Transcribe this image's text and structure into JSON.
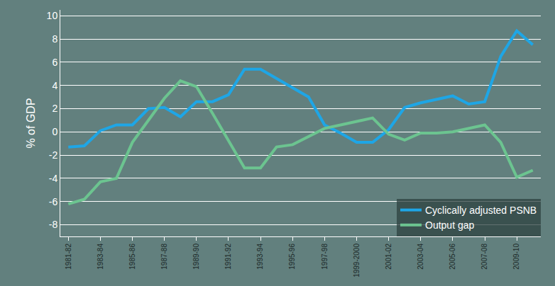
{
  "chart_data": {
    "type": "line",
    "y_label": "% of GDP",
    "categories": [
      "1981-82",
      null,
      "1983-84",
      null,
      "1985-86",
      null,
      "1987-88",
      null,
      "1989-90",
      null,
      "1991-92",
      null,
      "1993-94",
      null,
      "1995-96",
      null,
      "1997-98",
      null,
      "1999-2000",
      null,
      "2001-02",
      null,
      "2003-04",
      null,
      "2005-06",
      null,
      "2007-08",
      null,
      "2009-10",
      null
    ],
    "series": [
      {
        "name": "Cyclically adjusted PSNB",
        "color": "#1ea6e6",
        "values": [
          -1.3,
          -1.2,
          0.1,
          0.6,
          0.6,
          2.0,
          2.1,
          1.3,
          2.6,
          2.6,
          3.2,
          5.4,
          5.4,
          4.6,
          3.8,
          3.0,
          0.6,
          -0.1,
          -0.9,
          -0.9,
          0.2,
          2.1,
          2.5,
          2.8,
          3.1,
          2.4,
          2.6,
          6.5,
          8.7,
          7.5
        ]
      },
      {
        "name": "Output gap",
        "color": "#6cc490",
        "values": [
          -6.2,
          -5.8,
          -4.3,
          -4.0,
          -0.9,
          1.0,
          2.9,
          4.4,
          3.9,
          1.6,
          -0.7,
          -3.1,
          -3.1,
          -1.3,
          -1.1,
          -0.4,
          0.3,
          0.6,
          0.9,
          1.2,
          -0.2,
          -0.7,
          -0.1,
          -0.1,
          0.0,
          0.3,
          0.6,
          -0.9,
          -3.9,
          -3.3
        ]
      }
    ],
    "ylim": [
      -9,
      10.5
    ],
    "yticks": [
      -8,
      -6,
      -4,
      -2,
      0,
      2,
      4,
      6,
      8,
      10
    ],
    "grid": true,
    "legend": "lower right"
  }
}
